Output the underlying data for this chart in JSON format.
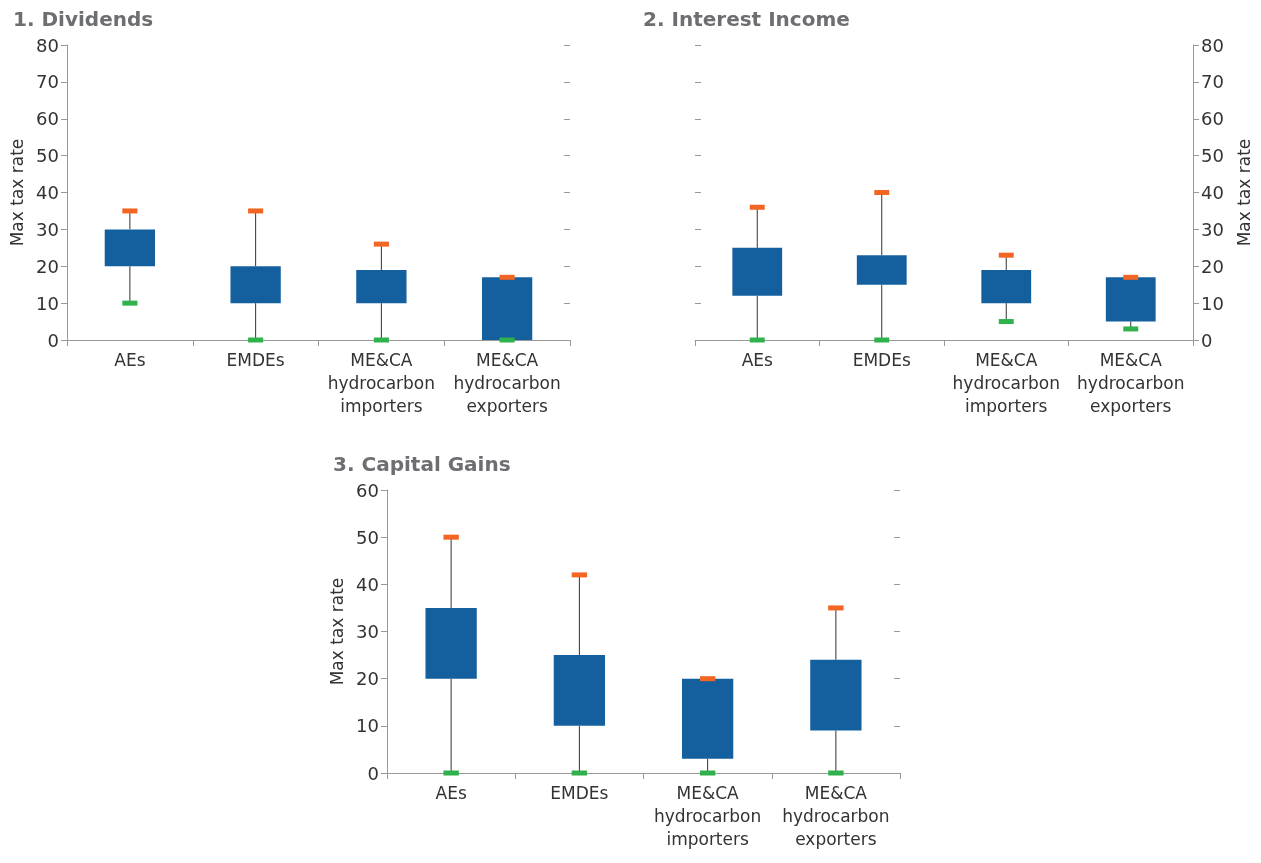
{
  "chart_data": [
    {
      "type": "box",
      "title": "1. Dividends",
      "ylabel": "Max tax rate",
      "categories": [
        "AEs",
        "EMDEs",
        "ME&CA hydrocarbon importers",
        "ME&CA hydrocarbon exporters"
      ],
      "ylim": [
        0,
        80
      ],
      "yticks": [
        0,
        10,
        20,
        30,
        40,
        50,
        60,
        70,
        80
      ],
      "series": [
        {
          "color": "#14609f",
          "boxes": [
            {
              "low": 10,
              "q1": 20,
              "q3": 30,
              "high": 35
            },
            {
              "low": 0,
              "q1": 10,
              "q3": 20,
              "high": 35
            },
            {
              "low": 0,
              "q1": 10,
              "q3": 19,
              "high": 26
            },
            {
              "low": 0,
              "q1": 0,
              "q3": 17,
              "high": 17
            }
          ]
        }
      ]
    },
    {
      "type": "box",
      "title": "2. Interest Income",
      "y2label": "Max tax rate",
      "categories": [
        "AEs",
        "EMDEs",
        "ME&CA hydrocarbon importers",
        "ME&CA hydrocarbon exporters"
      ],
      "y2lim": [
        0,
        80
      ],
      "y2ticks": [
        0,
        10,
        20,
        30,
        40,
        50,
        60,
        70,
        80
      ],
      "series": [
        {
          "color": "#14609f",
          "axis": "y2",
          "boxes": [
            {
              "low": 0,
              "q1": 12,
              "q3": 25,
              "high": 36
            },
            {
              "low": 0,
              "q1": 15,
              "q3": 23,
              "high": 40
            },
            {
              "low": 5,
              "q1": 10,
              "q3": 19,
              "high": 23
            },
            {
              "low": 3,
              "q1": 5,
              "q3": 17,
              "high": 17
            }
          ]
        }
      ]
    },
    {
      "type": "box",
      "title": "3. Capital Gains",
      "ylabel": "Max tax rate",
      "categories": [
        "AEs",
        "EMDEs",
        "ME&CA hydrocarbon importers",
        "ME&CA hydrocarbon exporters"
      ],
      "ylim": [
        0,
        60
      ],
      "yticks": [
        0,
        10,
        20,
        30,
        40,
        50,
        60
      ],
      "series": [
        {
          "color": "#14609f",
          "boxes": [
            {
              "low": 0,
              "q1": 20,
              "q3": 35,
              "high": 50
            },
            {
              "low": 0,
              "q1": 10,
              "q3": 25,
              "high": 42
            },
            {
              "low": 0,
              "q1": 3,
              "q3": 20,
              "high": 20
            },
            {
              "low": 0,
              "q1": 9,
              "q3": 24,
              "high": 35
            }
          ]
        }
      ]
    }
  ]
}
